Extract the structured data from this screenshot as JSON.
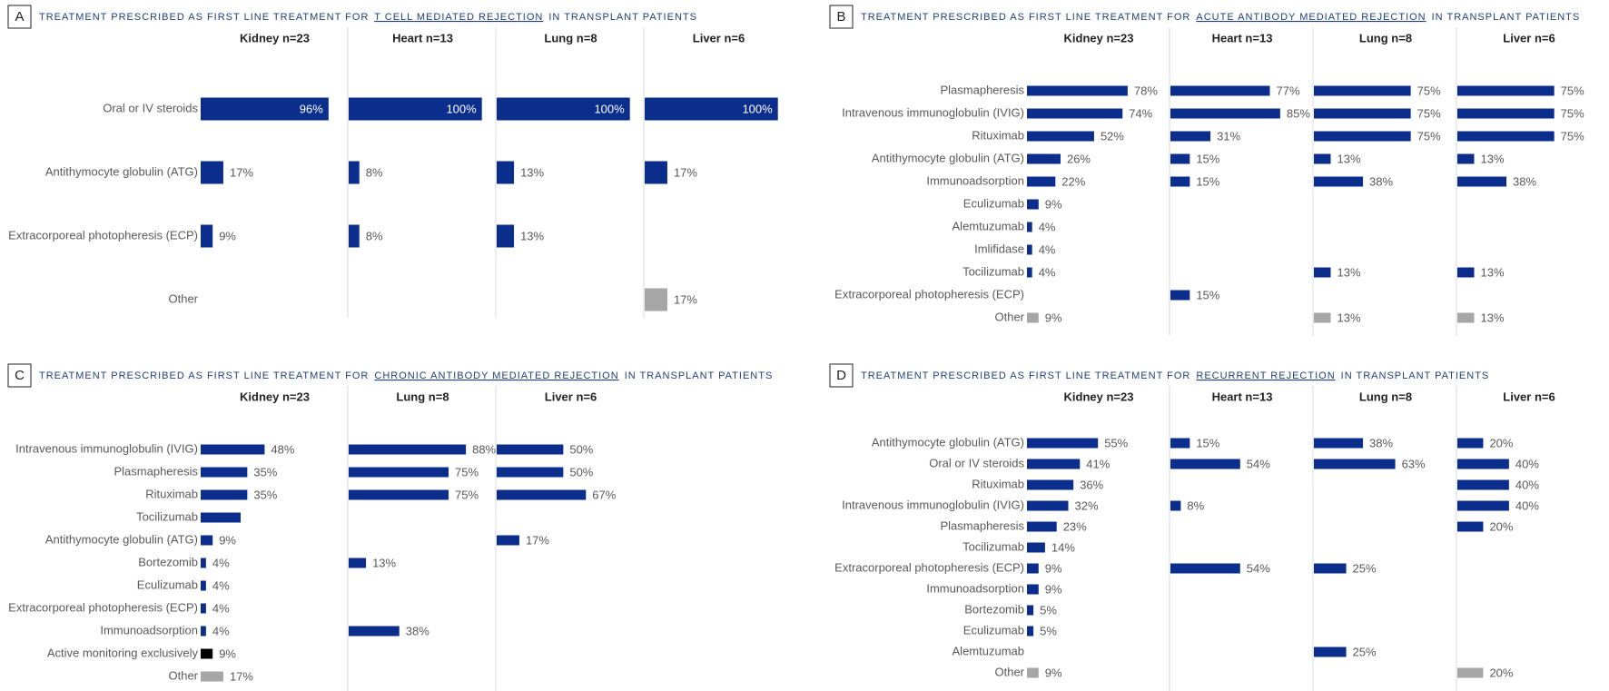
{
  "chart_data": [
    {
      "type": "bar",
      "panel": "A",
      "title": "TREATMENT PRESCRIBED AS FIRST LINE TREATMENT FOR",
      "title_highlight": "T CELL MEDIATED REJECTION",
      "title_suffix": "IN TRANSPLANT PATIENTS",
      "xlim": [
        0,
        100
      ],
      "categories": [
        "Oral or IV steroids",
        "Antithymocyte globulin (ATG)",
        "Extracorporeal photopheresis (ECP)",
        "Other"
      ],
      "bar_colors": [
        "#0b2d8c",
        "#0b2d8c",
        "#0b2d8c",
        "#a6a6a6"
      ],
      "series": [
        {
          "name": "Kidney n=23",
          "values": [
            96,
            17,
            9,
            null
          ],
          "value_labels": [
            "96%",
            "17%",
            "9%",
            null
          ]
        },
        {
          "name": "Heart n=13",
          "values": [
            100,
            8,
            8,
            null
          ],
          "value_labels": [
            "100%",
            "8%",
            "8%",
            null
          ]
        },
        {
          "name": "Lung n=8",
          "values": [
            100,
            13,
            13,
            null
          ],
          "value_labels": [
            "100%",
            "13%",
            "13%",
            null
          ]
        },
        {
          "name": "Liver n=6",
          "values": [
            100,
            17,
            null,
            17
          ],
          "value_labels": [
            "100%",
            "17%",
            null,
            "17%"
          ]
        }
      ]
    },
    {
      "type": "bar",
      "panel": "B",
      "title": "TREATMENT PRESCRIBED AS FIRST LINE TREATMENT FOR",
      "title_highlight": "ACUTE ANTIBODY MEDIATED REJECTION",
      "title_suffix": "IN TRANSPLANT PATIENTS",
      "xlim": [
        0,
        100
      ],
      "categories": [
        "Plasmapheresis",
        "Intravenous immunoglobulin (IVIG)",
        "Rituximab",
        "Antithymocyte globulin (ATG)",
        "Immunoadsorption",
        "Eculizumab",
        "Alemtuzumab",
        "Imlifidase",
        "Tocilizumab",
        "Extracorporeal photopheresis (ECP)",
        "Other"
      ],
      "bar_colors": [
        "#0b2d8c",
        "#0b2d8c",
        "#0b2d8c",
        "#0b2d8c",
        "#0b2d8c",
        "#0b2d8c",
        "#0b2d8c",
        "#0b2d8c",
        "#0b2d8c",
        "#0b2d8c",
        "#a6a6a6"
      ],
      "series": [
        {
          "name": "Kidney n=23",
          "values": [
            78,
            74,
            52,
            26,
            22,
            9,
            4,
            4,
            4,
            null,
            9
          ],
          "value_labels": [
            "78%",
            "74%",
            "52%",
            "26%",
            "22%",
            "9%",
            "4%",
            "4%",
            "4%",
            null,
            "9%"
          ]
        },
        {
          "name": "Heart n=13",
          "values": [
            77,
            85,
            31,
            15,
            15,
            null,
            null,
            null,
            null,
            15,
            null
          ],
          "value_labels": [
            "77%",
            "85%",
            "31%",
            "15%",
            "15%",
            null,
            null,
            null,
            null,
            "15%",
            null
          ]
        },
        {
          "name": "Lung n=8",
          "values": [
            75,
            75,
            75,
            13,
            38,
            null,
            null,
            null,
            13,
            null,
            13
          ],
          "value_labels": [
            "75%",
            "75%",
            "75%",
            "13%",
            "38%",
            null,
            null,
            null,
            "13%",
            null,
            "13%"
          ]
        },
        {
          "name": "Liver n=6",
          "values": [
            75,
            75,
            75,
            13,
            38,
            null,
            null,
            null,
            13,
            null,
            13
          ],
          "value_labels": [
            "75%",
            "75%",
            "75%",
            "13%",
            "38%",
            null,
            null,
            null,
            "13%",
            null,
            "13%"
          ]
        }
      ]
    },
    {
      "type": "bar",
      "panel": "C",
      "title": "TREATMENT PRESCRIBED AS FIRST LINE TREATMENT FOR",
      "title_highlight": "CHRONIC ANTIBODY MEDIATED REJECTION",
      "title_suffix": "IN TRANSPLANT PATIENTS",
      "xlim": [
        0,
        100
      ],
      "categories": [
        "Intravenous immunoglobulin (IVIG)",
        "Plasmapheresis",
        "Rituximab",
        "Tocilizumab",
        "Antithymocyte globulin (ATG)",
        "Bortezomib",
        "Eculizumab",
        "Extracorporeal photopheresis (ECP)",
        "Immunoadsorption",
        "Active monitoring exclusively",
        "Other"
      ],
      "bar_colors": [
        "#0b2d8c",
        "#0b2d8c",
        "#0b2d8c",
        "#0b2d8c",
        "#0b2d8c",
        "#0b2d8c",
        "#0b2d8c",
        "#0b2d8c",
        "#0b2d8c",
        "#000000",
        "#a6a6a6"
      ],
      "series": [
        {
          "name": "Kidney n=23",
          "values": [
            48,
            35,
            35,
            30,
            9,
            4,
            4,
            4,
            4,
            9,
            17
          ],
          "value_labels": [
            "48%",
            "35%",
            "35%",
            null,
            "9%",
            "4%",
            "4%",
            "4%",
            "4%",
            "9%",
            "17%"
          ]
        },
        {
          "name": "Lung n=8",
          "values": [
            88,
            75,
            75,
            null,
            null,
            13,
            null,
            null,
            38,
            null,
            null
          ],
          "value_labels": [
            "88%",
            "75%",
            "75%",
            null,
            null,
            "13%",
            null,
            null,
            "38%",
            null,
            null
          ]
        },
        {
          "name": "Liver n=6",
          "values": [
            50,
            50,
            67,
            null,
            17,
            null,
            null,
            null,
            null,
            null,
            null
          ],
          "value_labels": [
            "50%",
            "50%",
            "67%",
            null,
            "17%",
            null,
            null,
            null,
            null,
            null,
            null
          ]
        }
      ]
    },
    {
      "type": "bar",
      "panel": "D",
      "title": "TREATMENT PRESCRIBED AS FIRST LINE TREATMENT FOR",
      "title_highlight": "RECURRENT REJECTION",
      "title_suffix": "IN TRANSPLANT PATIENTS",
      "xlim": [
        0,
        100
      ],
      "categories": [
        "Antithymocyte globulin (ATG)",
        "Oral or IV steroids",
        "Rituximab",
        "Intravenous immunoglobulin (IVIG)",
        "Plasmapheresis",
        "Tocilizumab",
        "Extracorporeal photopheresis (ECP)",
        "Immunoadsorption",
        "Bortezomib",
        "Eculizumab",
        "Alemtuzumab",
        "Other"
      ],
      "bar_colors": [
        "#0b2d8c",
        "#0b2d8c",
        "#0b2d8c",
        "#0b2d8c",
        "#0b2d8c",
        "#0b2d8c",
        "#0b2d8c",
        "#0b2d8c",
        "#0b2d8c",
        "#0b2d8c",
        "#0b2d8c",
        "#a6a6a6"
      ],
      "series": [
        {
          "name": "Kidney n=23",
          "values": [
            55,
            41,
            36,
            32,
            23,
            14,
            9,
            9,
            5,
            5,
            null,
            9
          ],
          "value_labels": [
            "55%",
            "41%",
            "36%",
            "32%",
            "23%",
            "14%",
            "9%",
            "9%",
            "5%",
            "5%",
            null,
            "9%"
          ]
        },
        {
          "name": "Heart n=13",
          "values": [
            15,
            54,
            null,
            8,
            null,
            null,
            54,
            null,
            null,
            null,
            null,
            null
          ],
          "value_labels": [
            "15%",
            "54%",
            null,
            "8%",
            null,
            null,
            "54%",
            null,
            null,
            null,
            null,
            null
          ]
        },
        {
          "name": "Lung n=8",
          "values": [
            38,
            63,
            null,
            null,
            null,
            null,
            25,
            null,
            null,
            null,
            25,
            null
          ],
          "value_labels": [
            "38%",
            "63%",
            null,
            null,
            null,
            null,
            "25%",
            null,
            null,
            null,
            "25%",
            null
          ]
        },
        {
          "name": "Liver n=6",
          "values": [
            20,
            40,
            40,
            40,
            20,
            null,
            null,
            null,
            null,
            null,
            null,
            20
          ],
          "value_labels": [
            "20%",
            "40%",
            "40%",
            "40%",
            "20%",
            null,
            null,
            null,
            null,
            null,
            null,
            "20%"
          ]
        }
      ]
    }
  ]
}
